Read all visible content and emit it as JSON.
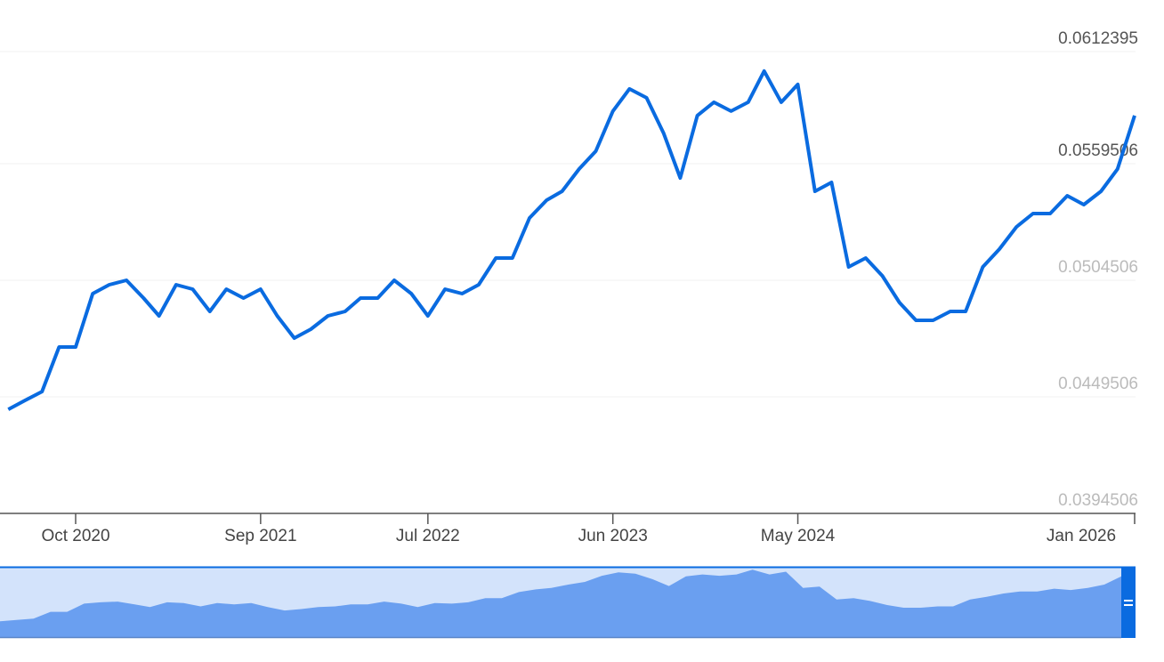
{
  "chart_data": {
    "type": "line",
    "title": "",
    "xlabel": "",
    "ylabel": "",
    "y_ticks": [
      "0.0612395",
      "0.0559506",
      "0.0504506",
      "0.0449506",
      "0.0394506"
    ],
    "y_tick_values": [
      0.0612395,
      0.0559506,
      0.0504506,
      0.0449506,
      0.0394506
    ],
    "ylim": [
      0.0394506,
      0.0612395
    ],
    "x_ticks": [
      {
        "label": "Oct 2020",
        "date": "2020-10-01"
      },
      {
        "label": "Sep 2021",
        "date": "2021-09-01"
      },
      {
        "label": "Jul 2022",
        "date": "2022-07-01"
      },
      {
        "label": "Jun 2023",
        "date": "2023-06-01"
      },
      {
        "label": "May 2024",
        "date": "2024-05-01"
      },
      {
        "label": "Jan 2026",
        "date": "2026-01-01"
      }
    ],
    "grid": true,
    "line_color": "#0a6be0",
    "navigator": {
      "fill": "#6a9ff0",
      "background": "#d3e3fb",
      "handle_color": "#0a6be0",
      "selection": [
        0,
        1
      ]
    },
    "series": [
      {
        "x": [
          "2020-06-01",
          "2020-07-01",
          "2020-08-01",
          "2020-09-01",
          "2020-10-01",
          "2020-11-01",
          "2020-12-01",
          "2021-01-01",
          "2021-02-01",
          "2021-03-01",
          "2021-04-01",
          "2021-05-01",
          "2021-06-01",
          "2021-07-01",
          "2021-08-01",
          "2021-09-01",
          "2021-10-01",
          "2021-11-01",
          "2021-12-01",
          "2022-01-01",
          "2022-02-01",
          "2022-03-01",
          "2022-04-01",
          "2022-05-01",
          "2022-06-01",
          "2022-07-01",
          "2022-08-01",
          "2022-09-01",
          "2022-10-01",
          "2022-11-01",
          "2022-12-01",
          "2023-01-01",
          "2023-02-01",
          "2023-03-01",
          "2023-04-01",
          "2023-05-01",
          "2023-06-01",
          "2023-07-01",
          "2023-08-01",
          "2023-09-01",
          "2023-10-01",
          "2023-11-01",
          "2023-12-01",
          "2024-01-01",
          "2024-02-01",
          "2024-03-01",
          "2024-04-01",
          "2024-05-01",
          "2024-06-01",
          "2024-07-01",
          "2024-08-01",
          "2024-09-01",
          "2024-10-01",
          "2024-11-01",
          "2024-12-01",
          "2025-01-01",
          "2025-02-01",
          "2025-03-01",
          "2025-04-01",
          "2025-05-01",
          "2025-06-01",
          "2025-07-01",
          "2025-08-01",
          "2025-09-01",
          "2025-10-01",
          "2025-11-01",
          "2025-12-01",
          "2026-01-01"
        ],
        "values": [
          0.04436,
          0.04478,
          0.0452,
          0.0473,
          0.0473,
          0.04982,
          0.05024,
          0.05045,
          0.04961,
          0.04877,
          0.05024,
          0.05003,
          0.04898,
          0.05003,
          0.04961,
          0.05003,
          0.04877,
          0.04772,
          0.04814,
          0.04877,
          0.04898,
          0.04961,
          0.04961,
          0.05045,
          0.04982,
          0.04877,
          0.05003,
          0.04982,
          0.05024,
          0.0515,
          0.0515,
          0.05339,
          0.05423,
          0.05465,
          0.0557,
          0.05654,
          0.05843,
          0.05948,
          0.05906,
          0.05738,
          0.05528,
          0.05822,
          0.05885,
          0.05843,
          0.05885,
          0.06032,
          0.05885,
          0.05969,
          0.05465,
          0.05507,
          0.05108,
          0.0515,
          0.05066,
          0.0494,
          0.04856,
          0.04856,
          0.04898,
          0.04898,
          0.05108,
          0.05192,
          0.05297,
          0.0536,
          0.0536,
          0.05444,
          0.05402,
          0.05465,
          0.0557,
          0.05822
        ]
      }
    ]
  }
}
